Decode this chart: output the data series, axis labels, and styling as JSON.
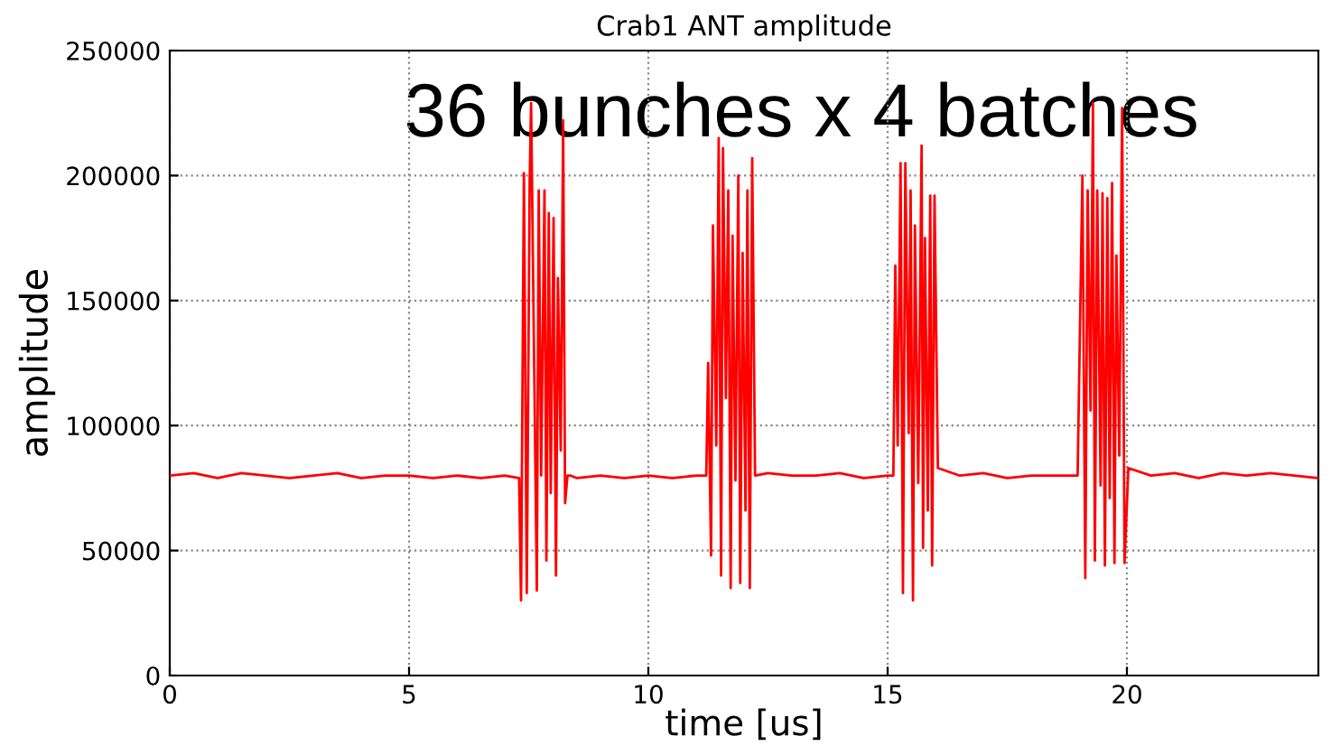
{
  "chart_data": {
    "type": "line",
    "title": "Crab1 ANT amplitude",
    "xlabel": "time [us]",
    "ylabel": "amplitude",
    "annotations": [
      "36 bunches x 4 batches"
    ],
    "xlim": [
      0,
      24
    ],
    "ylim": [
      0,
      250000
    ],
    "xticks": [
      0,
      5,
      10,
      15,
      20
    ],
    "yticks": [
      0,
      50000,
      100000,
      150000,
      200000,
      250000
    ],
    "grid": true,
    "legend": false,
    "marker": "none",
    "line_style": "solid",
    "series": [
      {
        "color": "#ff0000",
        "x": [
          0,
          0.5,
          1,
          1.5,
          2,
          2.5,
          3,
          3.5,
          4,
          4.5,
          5,
          5.5,
          6,
          6.5,
          7,
          7.3,
          7.34,
          7.4,
          7.46,
          7.52,
          7.55,
          7.67,
          7.71,
          7.76,
          7.83,
          7.87,
          7.92,
          7.96,
          8.02,
          8.07,
          8.11,
          8.17,
          8.22,
          8.26,
          8.31,
          8.37,
          8.5,
          9,
          9.5,
          10,
          10.5,
          11,
          11.21,
          11.25,
          11.31,
          11.35,
          11.42,
          11.47,
          11.52,
          11.56,
          11.62,
          11.67,
          11.72,
          11.76,
          11.82,
          11.88,
          11.92,
          11.97,
          12.03,
          12.07,
          12.12,
          12.17,
          12.23,
          12.5,
          13,
          13.5,
          14,
          14.5,
          15,
          15.12,
          15.16,
          15.21,
          15.27,
          15.32,
          15.37,
          15.44,
          15.48,
          15.53,
          15.57,
          15.64,
          15.71,
          15.74,
          15.78,
          15.84,
          15.89,
          15.93,
          15.98,
          16.05,
          16.5,
          17,
          17.5,
          18,
          18.5,
          18.97,
          19.07,
          19.13,
          19.18,
          19.24,
          19.29,
          19.33,
          19.38,
          19.45,
          19.49,
          19.54,
          19.59,
          19.64,
          19.69,
          19.74,
          19.78,
          19.84,
          19.9,
          19.95,
          20.03,
          20.5,
          21,
          21.5,
          22,
          22.5,
          23,
          23.5,
          24
        ],
        "values": [
          80000,
          81000,
          79000,
          81000,
          80000,
          79000,
          80000,
          81000,
          79000,
          80000,
          80000,
          79000,
          80000,
          79000,
          80000,
          79000,
          30000,
          201000,
          33000,
          197000,
          229000,
          34000,
          194000,
          80000,
          194000,
          46000,
          185000,
          73000,
          183000,
          40000,
          159000,
          90000,
          222000,
          69000,
          80000,
          80000,
          79000,
          80000,
          79000,
          80000,
          79000,
          80000,
          80000,
          125000,
          48000,
          180000,
          92000,
          215000,
          40000,
          211000,
          111000,
          194000,
          35000,
          176000,
          78000,
          200000,
          37000,
          169000,
          66000,
          194000,
          35000,
          207000,
          80000,
          81000,
          80000,
          80000,
          81000,
          79000,
          80000,
          80000,
          164000,
          92000,
          205000,
          33000,
          205000,
          97000,
          194000,
          30000,
          180000,
          77000,
          212000,
          51000,
          175000,
          66000,
          192000,
          44000,
          192000,
          83000,
          80000,
          81000,
          79000,
          80000,
          80000,
          80000,
          200000,
          39000,
          194000,
          106000,
          229000,
          46000,
          194000,
          76000,
          193000,
          44000,
          191000,
          71000,
          197000,
          45000,
          168000,
          88000,
          227000,
          45000,
          83000,
          80000,
          81000,
          79000,
          81000,
          80000,
          81000,
          80000,
          79000
        ]
      }
    ]
  }
}
